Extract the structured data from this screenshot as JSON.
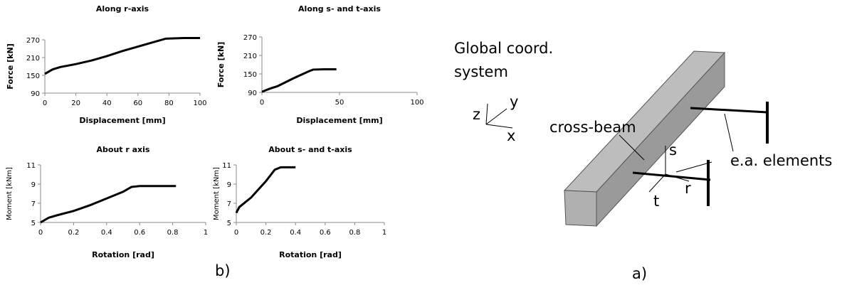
{
  "chart_data": [
    {
      "type": "line",
      "title": "Along r-axis",
      "x_label": "Displacement [mm]",
      "y_label": "Force [kN]",
      "xlim": [
        0,
        100
      ],
      "xticks": [
        0,
        20,
        40,
        60,
        80,
        100
      ],
      "ylim": [
        90,
        270
      ],
      "yticks": [
        90,
        150,
        210,
        270
      ],
      "color": "#000000",
      "x": [
        0,
        5,
        10,
        20,
        30,
        40,
        50,
        60,
        70,
        78,
        90,
        100
      ],
      "values": [
        155,
        170,
        178,
        188,
        200,
        215,
        232,
        247,
        262,
        274,
        276,
        276
      ]
    },
    {
      "type": "line",
      "title": "Along  s- and t-axis",
      "x_label": "Displacement [mm]",
      "y_label": "Force [kN]",
      "xlim": [
        0,
        100
      ],
      "xticks": [
        0,
        50,
        100
      ],
      "ylim": [
        90,
        270
      ],
      "yticks": [
        90,
        150,
        210,
        270
      ],
      "color": "#000000",
      "x": [
        0,
        5,
        10,
        20,
        30,
        33,
        40,
        48
      ],
      "values": [
        92,
        102,
        110,
        135,
        158,
        164,
        165,
        165
      ]
    },
    {
      "type": "line",
      "title": "About r axis",
      "x_label": "Rotation [rad]",
      "y_label": "Moment [kNm]",
      "xlim": [
        0,
        1
      ],
      "xticks": [
        0,
        0.2,
        0.4,
        0.6,
        0.8,
        1
      ],
      "ylim": [
        5,
        11
      ],
      "yticks": [
        5,
        7,
        9,
        11
      ],
      "color": "#000000",
      "x": [
        0,
        0.05,
        0.1,
        0.2,
        0.3,
        0.4,
        0.5,
        0.55,
        0.6,
        0.7,
        0.82
      ],
      "values": [
        5,
        5.5,
        5.75,
        6.2,
        6.8,
        7.5,
        8.2,
        8.7,
        8.8,
        8.8,
        8.8
      ]
    },
    {
      "type": "line",
      "title": "About s- and t-axis",
      "x_label": "Rotation [rad]",
      "y_label": "Moment [kNm]",
      "xlim": [
        0,
        1
      ],
      "xticks": [
        0,
        0.2,
        0.4,
        0.6,
        0.8,
        1
      ],
      "ylim": [
        5,
        11
      ],
      "yticks": [
        5,
        7,
        9,
        11
      ],
      "color": "#000000",
      "x": [
        0,
        0.02,
        0.1,
        0.2,
        0.26,
        0.3,
        0.4
      ],
      "values": [
        6,
        6.6,
        7.6,
        9.3,
        10.5,
        10.75,
        10.75
      ]
    }
  ],
  "panel_b": "b)",
  "diagram": {
    "global_title": "Global coord.",
    "global_title_2": "system",
    "z": "z",
    "y": "y",
    "x": "x",
    "beam": "cross-beam",
    "elements": "e.a. elements",
    "s": "s",
    "t": "t",
    "r": "r",
    "panel": "a)"
  }
}
